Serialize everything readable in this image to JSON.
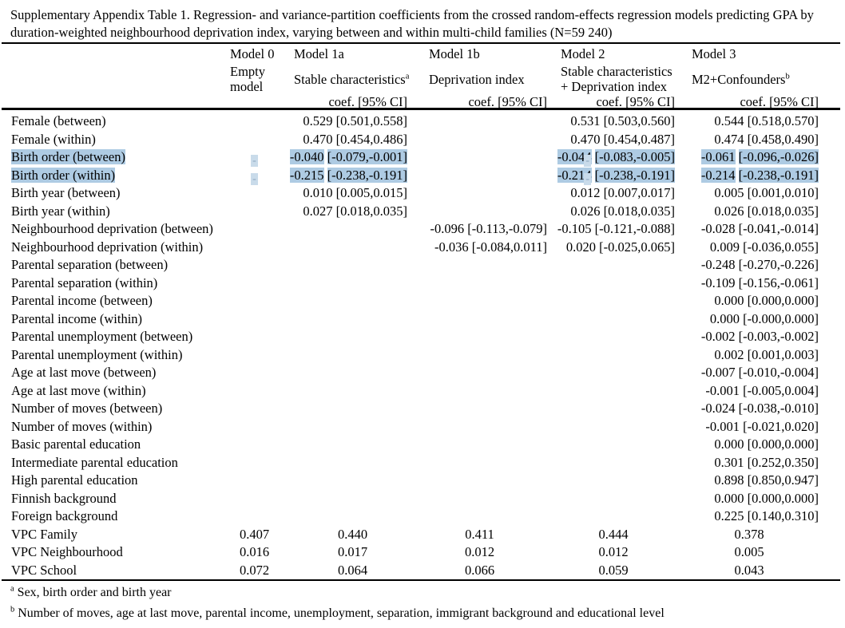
{
  "title": "Supplementary Appendix Table 1. Regression- and variance-partition coefficients from the crossed random-effects regression models predicting GPA by duration-weighted neighbourhood deprivation index, varying between and within multi-child families (N=59 240)",
  "highlight_color": "#aecbe3",
  "header": {
    "models": [
      {
        "name": "Model 0",
        "desc": "Empty model",
        "coef": ""
      },
      {
        "name": "Model 1a",
        "desc": "Stable characteristics",
        "desc_sup": "a",
        "coef": "coef. [95% CI]"
      },
      {
        "name": "Model 1b",
        "desc": "Deprivation index",
        "coef": "coef. [95% CI]"
      },
      {
        "name": "Model 2",
        "desc": "Stable characteristics + Deprivation index",
        "coef": "coef. [95% CI]"
      },
      {
        "name": "Model 3",
        "desc": "M2+Confounders",
        "desc_sup": "b",
        "coef": "coef. [95% CI]"
      }
    ]
  },
  "rows": [
    {
      "label": "Female (between)",
      "cells": {
        "m1a": [
          {
            "t": "0.529 [0.501,0.558]"
          }
        ],
        "m2": [
          {
            "t": "0.531 [0.503,0.560]"
          }
        ],
        "m3": [
          {
            "t": "0.544 [0.518,0.570]"
          }
        ]
      }
    },
    {
      "label": "Female (within)",
      "cells": {
        "m1a": [
          {
            "t": "0.470 [0.454,0.486]"
          }
        ],
        "m2": [
          {
            "t": "0.470 [0.454,0.487]"
          }
        ],
        "m3": [
          {
            "t": "0.474 [0.458,0.490]"
          }
        ]
      }
    },
    {
      "label": "Birth order (between)",
      "label_hl": true,
      "cells": {
        "m0": [
          {
            "t": "-",
            "d": true
          }
        ],
        "m1a": [
          {
            "t": "-0.040",
            "h": true
          },
          {
            "t": " "
          },
          {
            "t": "[-0.079,",
            "h": true
          },
          {
            "t": "-0.001]",
            "h": true
          }
        ],
        "m1b": [
          {
            "t": "-",
            "d": true
          }
        ],
        "m2": [
          {
            "t": "-0.044",
            "h": true
          },
          {
            "t": " "
          },
          {
            "t": "[-0.083,",
            "h": true
          },
          {
            "t": "-0.005]",
            "h": true
          }
        ],
        "m3": [
          {
            "t": "-0.061",
            "h": true
          },
          {
            "t": " "
          },
          {
            "t": "[-0.096,",
            "h": true
          },
          {
            "t": "-0.026]",
            "h": true
          }
        ]
      }
    },
    {
      "label": "Birth order (within)",
      "label_hl": true,
      "cells": {
        "m0": [
          {
            "t": "-",
            "d": true
          }
        ],
        "m1a": [
          {
            "t": "-0.215",
            "h": true
          },
          {
            "t": " "
          },
          {
            "t": "[-0.238,",
            "h": true
          },
          {
            "t": "-0.191]",
            "h": true
          }
        ],
        "m1b": [
          {
            "t": "-",
            "d": true
          }
        ],
        "m2": [
          {
            "t": "-0.214",
            "h": true
          },
          {
            "t": " "
          },
          {
            "t": "[-0.238,",
            "h": true
          },
          {
            "t": "-0.191]",
            "h": true
          }
        ],
        "m3": [
          {
            "t": "-0.214",
            "h": true
          },
          {
            "t": " "
          },
          {
            "t": "[-0.238,",
            "h": true
          },
          {
            "t": "-0.191]",
            "h": true
          }
        ]
      }
    },
    {
      "label": "Birth year (between)",
      "cells": {
        "m1a": [
          {
            "t": "0.010 [0.005,0.015]"
          }
        ],
        "m2": [
          {
            "t": "0.012 [0.007,0.017]"
          }
        ],
        "m3": [
          {
            "t": "0.005 [0.001,0.010]"
          }
        ]
      }
    },
    {
      "label": "Birth year (within)",
      "cells": {
        "m1a": [
          {
            "t": "0.027 [0.018,0.035]"
          }
        ],
        "m2": [
          {
            "t": "0.026 [0.018,0.035]"
          }
        ],
        "m3": [
          {
            "t": "0.026 [0.018,0.035]"
          }
        ]
      }
    },
    {
      "label": "Neighbourhood deprivation (between)",
      "cells": {
        "m1b": [
          {
            "t": "-0.096 [-0.113,-0.079]"
          }
        ],
        "m2": [
          {
            "t": "-0.105 [-0.121,-0.088]"
          }
        ],
        "m3": [
          {
            "t": "-0.028 [-0.041,-0.014]"
          }
        ]
      }
    },
    {
      "label": "Neighbourhood deprivation (within)",
      "cells": {
        "m1b": [
          {
            "t": "-0.036 [-0.084,0.011]"
          }
        ],
        "m2": [
          {
            "t": "0.020 [-0.025,0.065]"
          }
        ],
        "m3": [
          {
            "t": "0.009 [-0.036,0.055]"
          }
        ]
      }
    },
    {
      "label": "Parental separation (between)",
      "cells": {
        "m3": [
          {
            "t": "-0.248 [-0.270,-0.226]"
          }
        ]
      }
    },
    {
      "label": "Parental separation (within)",
      "cells": {
        "m3": [
          {
            "t": "-0.109 [-0.156,-0.061]"
          }
        ]
      }
    },
    {
      "label": "Parental income (between)",
      "cells": {
        "m3": [
          {
            "t": "0.000 [0.000,0.000]"
          }
        ]
      }
    },
    {
      "label": "Parental income (within)",
      "cells": {
        "m3": [
          {
            "t": "0.000 [-0.000,0.000]"
          }
        ]
      }
    },
    {
      "label": "Parental unemployment (between)",
      "cells": {
        "m3": [
          {
            "t": "-0.002 [-0.003,-0.002]"
          }
        ]
      }
    },
    {
      "label": "Parental unemployment (within)",
      "cells": {
        "m3": [
          {
            "t": "0.002 [0.001,0.003]"
          }
        ]
      }
    },
    {
      "label": "Age at last move (between)",
      "cells": {
        "m3": [
          {
            "t": "-0.007 [-0.010,-0.004]"
          }
        ]
      }
    },
    {
      "label": "Age at last move (within)",
      "cells": {
        "m3": [
          {
            "t": "-0.001 [-0.005,0.004]"
          }
        ]
      }
    },
    {
      "label": "Number of moves (between)",
      "cells": {
        "m3": [
          {
            "t": "-0.024 [-0.038,-0.010]"
          }
        ]
      }
    },
    {
      "label": "Number of moves (within)",
      "cells": {
        "m3": [
          {
            "t": "-0.001 [-0.021,0.020]"
          }
        ]
      }
    },
    {
      "label": "Basic parental education",
      "cells": {
        "m3": [
          {
            "t": "0.000 [0.000,0.000]"
          }
        ]
      }
    },
    {
      "label": "Intermediate parental education",
      "cells": {
        "m3": [
          {
            "t": "0.301 [0.252,0.350]"
          }
        ]
      }
    },
    {
      "label": "High parental education",
      "cells": {
        "m3": [
          {
            "t": "0.898 [0.850,0.947]"
          }
        ]
      }
    },
    {
      "label": "Finnish background",
      "cells": {
        "m3": [
          {
            "t": "0.000 [0.000,0.000]"
          }
        ]
      }
    },
    {
      "label": "Foreign background",
      "cells": {
        "m3": [
          {
            "t": "0.225 [0.140,0.310]"
          }
        ]
      }
    },
    {
      "label": "VPC Family",
      "vpc": true,
      "cells": {
        "m0": [
          {
            "t": "0.407"
          }
        ],
        "m1a": [
          {
            "t": "0.440"
          }
        ],
        "m1b": [
          {
            "t": "0.411"
          }
        ],
        "m2": [
          {
            "t": "0.444"
          }
        ],
        "m3": [
          {
            "t": "0.378"
          }
        ]
      }
    },
    {
      "label": "VPC Neighbourhood",
      "vpc": true,
      "cells": {
        "m0": [
          {
            "t": "0.016"
          }
        ],
        "m1a": [
          {
            "t": "0.017"
          }
        ],
        "m1b": [
          {
            "t": "0.012"
          }
        ],
        "m2": [
          {
            "t": "0.012"
          }
        ],
        "m3": [
          {
            "t": "0.005"
          }
        ]
      }
    },
    {
      "label": "VPC School",
      "vpc": true,
      "cells": {
        "m0": [
          {
            "t": "0.072"
          }
        ],
        "m1a": [
          {
            "t": "0.064"
          }
        ],
        "m1b": [
          {
            "t": "0.066"
          }
        ],
        "m2": [
          {
            "t": "0.059"
          }
        ],
        "m3": [
          {
            "t": "0.043"
          }
        ]
      }
    }
  ],
  "footnotes": [
    {
      "sup": "a",
      "text": "Sex, birth order and birth year"
    },
    {
      "sup": "b",
      "text": "Number of moves, age at last move, parental income, unemployment, separation, immigrant background and educational level"
    }
  ]
}
